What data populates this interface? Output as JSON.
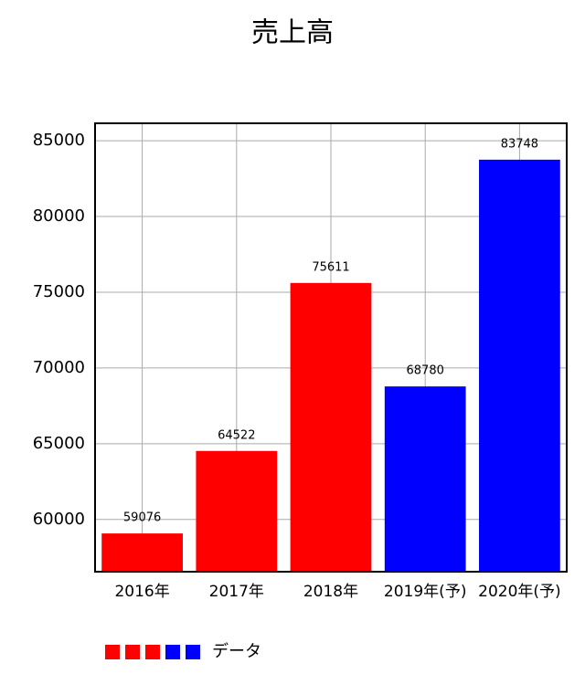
{
  "chart_data": {
    "type": "bar",
    "title": "売上高",
    "categories": [
      "2016年",
      "2017年",
      "2018年",
      "2019年(予)",
      "2020年(予)"
    ],
    "series": [
      {
        "name": "データ",
        "colors": [
          "#ff0000",
          "#ff0000",
          "#ff0000",
          "#0000ff",
          "#0000ff"
        ],
        "values": [
          59076,
          64522,
          75611,
          68780,
          83748
        ]
      }
    ],
    "ylim": [
      56550,
      86150
    ],
    "yticks": [
      60000,
      65000,
      70000,
      75000,
      80000,
      85000
    ],
    "grid": true
  }
}
